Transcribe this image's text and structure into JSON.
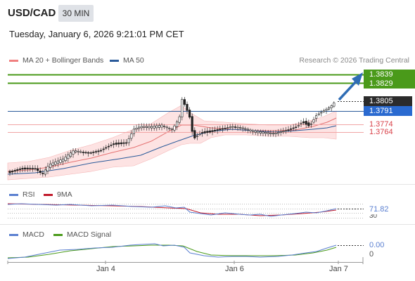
{
  "header": {
    "pair": "USD/CAD",
    "timeframe": "30 MIN",
    "timestamp": "Tuesday, January 6, 2026 9:21:01 PM CET"
  },
  "legend": {
    "bb_label": "MA 20 + Bollinger Bands",
    "ma50_label": "MA 50",
    "credit": "Research © 2026 Trading Central"
  },
  "colors": {
    "up_target": "#4a9a1a",
    "current": "#2b2b2b",
    "ma50": "#2a5a9a",
    "support": "#d9424a",
    "bands": "#fbe0e0",
    "arrow": "#2f6db5"
  },
  "price_tags": {
    "target1": "1.3839",
    "target2": "1.3829",
    "last": "1.3805",
    "ma50_value": "1.3791",
    "support1": "1.3774",
    "support2": "1.3764"
  },
  "rsi": {
    "label": "RSI",
    "ma_label": "9MA",
    "value": "71.82",
    "level_label": "30"
  },
  "macd": {
    "label": "MACD",
    "signal_label": "MACD Signal",
    "value": "0.00",
    "zero": "0"
  },
  "x_axis": {
    "labels": [
      "Jan 4",
      "Jan 6",
      "Jan 7"
    ]
  }
}
